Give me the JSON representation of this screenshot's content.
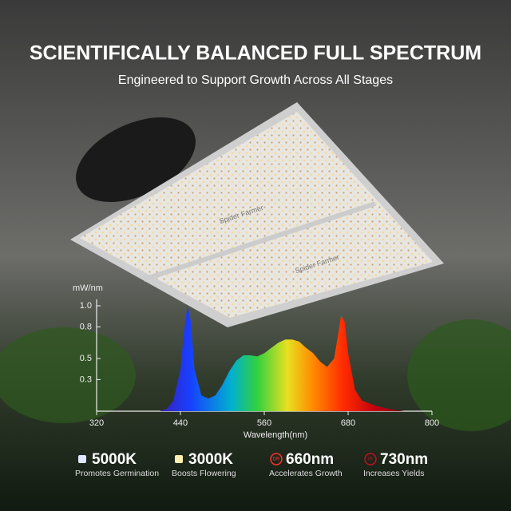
{
  "header": {
    "title": "SCIENTIFICALLY BALANCED FULL SPECTRUM",
    "subtitle": "Engineered to Support Growth Across All Stages"
  },
  "panel_brand": "Spider Farmer",
  "chart_data": {
    "type": "area",
    "y_label": "mW/nm",
    "x_label": "Wavelength(nm)",
    "x": [
      410,
      420,
      430,
      440,
      445,
      450,
      455,
      460,
      470,
      480,
      490,
      500,
      510,
      520,
      530,
      540,
      550,
      560,
      570,
      580,
      590,
      600,
      610,
      620,
      630,
      640,
      650,
      660,
      665,
      670,
      675,
      680,
      690,
      700,
      720,
      740,
      760
    ],
    "values": [
      0,
      0.02,
      0.1,
      0.4,
      0.75,
      1.0,
      0.85,
      0.4,
      0.15,
      0.12,
      0.15,
      0.25,
      0.38,
      0.48,
      0.53,
      0.53,
      0.52,
      0.55,
      0.6,
      0.65,
      0.68,
      0.68,
      0.66,
      0.6,
      0.55,
      0.47,
      0.42,
      0.5,
      0.7,
      0.91,
      0.85,
      0.55,
      0.2,
      0.1,
      0.05,
      0.02,
      0
    ],
    "xlim": [
      320,
      800
    ],
    "xticks": [
      320,
      440,
      560,
      680,
      800
    ],
    "ylim": [
      0,
      1.0
    ],
    "yticks": [
      0.3,
      0.5,
      0.8,
      {
        "value": 1.0,
        "label": "1.0"
      }
    ]
  },
  "features": [
    {
      "value": "5000K",
      "caption": "Promotes Germination"
    },
    {
      "value": "3000K",
      "caption": "Boosts Flowering"
    },
    {
      "icon_text": "DR",
      "value": "660nm",
      "caption": "Accelerates Growth"
    },
    {
      "icon_text": "IR",
      "value": "730nm",
      "caption": "Increases Yields"
    }
  ]
}
